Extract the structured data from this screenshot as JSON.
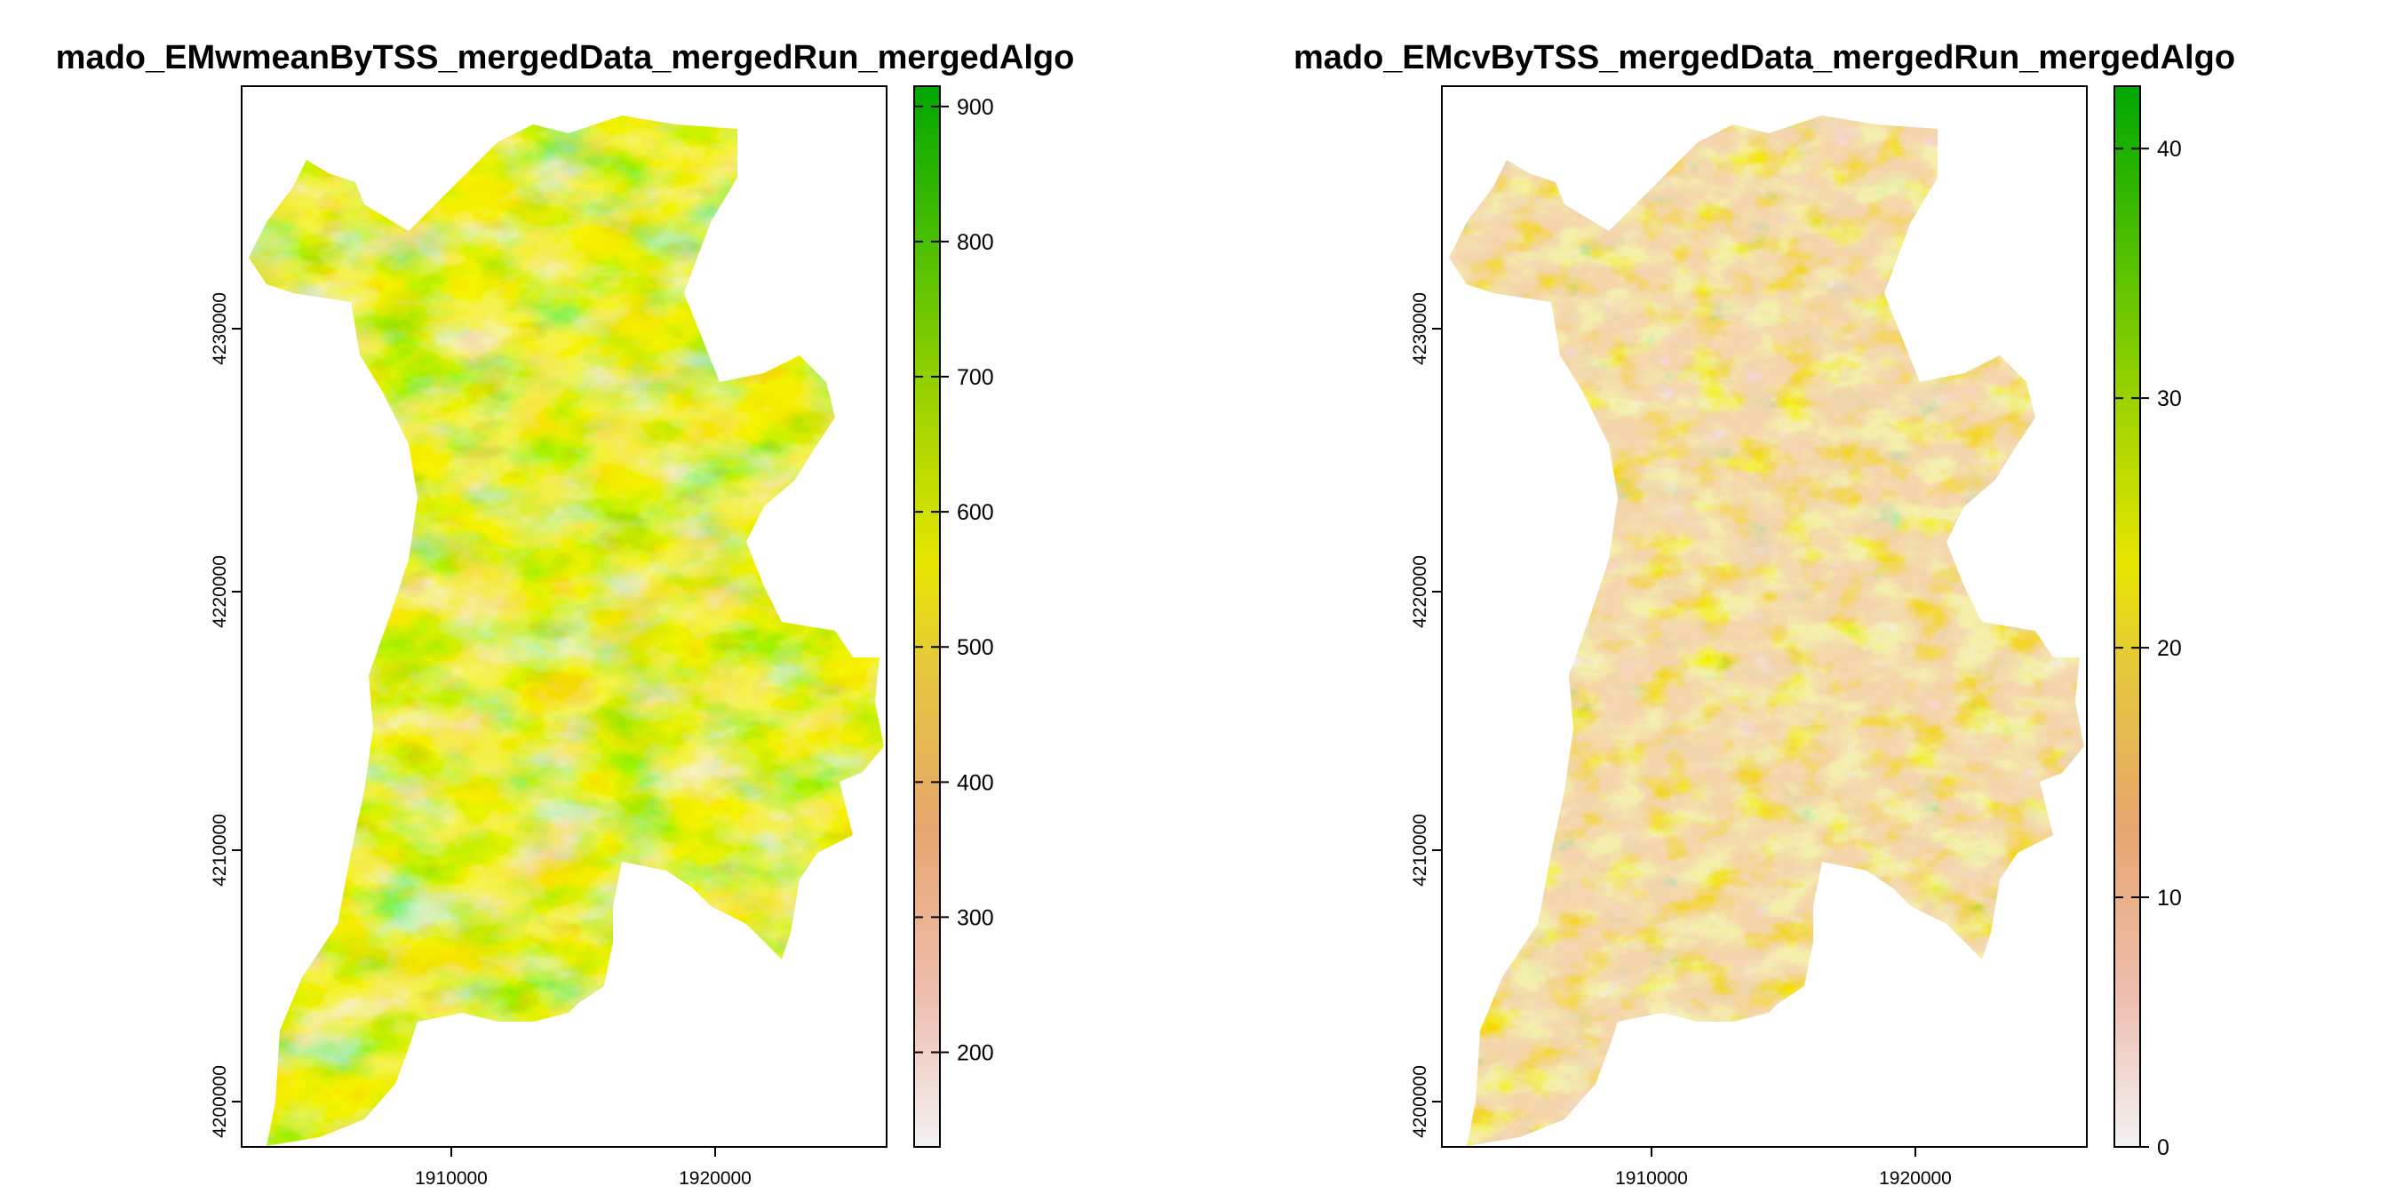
{
  "panels": [
    {
      "title": "mado_EMwmeanByTSS_mergedData_mergedRun_mergedAlgo",
      "x_ticks": [
        "1910000",
        "1920000"
      ],
      "y_ticks": [
        "4200000",
        "4210000",
        "4220000",
        "4230000"
      ],
      "legend": {
        "min": 130,
        "max": 915,
        "ticks": [
          {
            "value": 200,
            "label": "200"
          },
          {
            "value": 300,
            "label": "300"
          },
          {
            "value": 400,
            "label": "400"
          },
          {
            "value": 500,
            "label": "500"
          },
          {
            "value": 600,
            "label": "600"
          },
          {
            "value": 700,
            "label": "700"
          },
          {
            "value": 800,
            "label": "800"
          },
          {
            "value": 900,
            "label": "900"
          }
        ]
      }
    },
    {
      "title": "mado_EMcvByTSS_mergedData_mergedRun_mergedAlgo",
      "x_ticks": [
        "1910000",
        "1920000"
      ],
      "y_ticks": [
        "4200000",
        "4210000",
        "4220000",
        "4230000"
      ],
      "legend": {
        "min": 0,
        "max": 42.5,
        "ticks": [
          {
            "value": 0,
            "label": "0"
          },
          {
            "value": 10,
            "label": "10"
          },
          {
            "value": 20,
            "label": "20"
          },
          {
            "value": 30,
            "label": "30"
          },
          {
            "value": 40,
            "label": "40"
          }
        ]
      }
    }
  ],
  "colors": {
    "ramp": [
      "#F2F2F2",
      "#EEBEB0",
      "#E6A66E",
      "#E5C73C",
      "#E6E600",
      "#9ED300",
      "#4CBF00",
      "#00A600"
    ]
  }
}
